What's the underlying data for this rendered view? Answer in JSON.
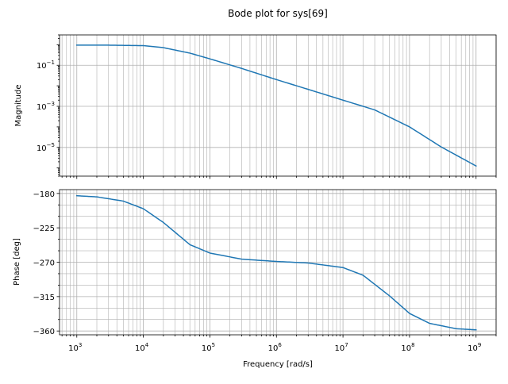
{
  "figure": {
    "title": "Bode plot for sys[69]"
  },
  "colors": {
    "series": "#1f77b4",
    "grid": "#b0b0b0"
  },
  "chart_data": [
    {
      "type": "line",
      "panel": "magnitude",
      "title": "Bode plot for sys[69]",
      "xlabel": "",
      "ylabel": "Magnitude",
      "xscale": "log",
      "yscale": "log",
      "xlim": [
        550,
        2000000000
      ],
      "ylim": [
        4e-07,
        3
      ],
      "grid": true,
      "y_ticks": [
        0.1,
        0.001,
        1e-05
      ],
      "y_tick_labels": [
        {
          "base": "10",
          "exp": "−1"
        },
        {
          "base": "10",
          "exp": "−3"
        },
        {
          "base": "10",
          "exp": "−5"
        }
      ],
      "x_tick_labels_visible": false,
      "series": [
        {
          "x": [
            1000,
            3000,
            10000,
            20000,
            50000,
            100000,
            300000,
            1000000,
            3000000,
            10000000,
            30000000,
            100000000,
            300000000,
            1000000000
          ],
          "values": [
            0.95,
            0.95,
            0.9,
            0.72,
            0.39,
            0.205,
            0.07,
            0.02,
            0.0067,
            0.002,
            0.00067,
            0.0001,
            1.05e-05,
            1.25e-06
          ]
        }
      ]
    },
    {
      "type": "line",
      "panel": "phase",
      "xlabel": "Frequency [rad/s]",
      "ylabel": "Phase [deg]",
      "xscale": "log",
      "yscale": "linear",
      "xlim": [
        550,
        2000000000
      ],
      "ylim": [
        -365,
        -175
      ],
      "grid": true,
      "y_ticks": [
        -180,
        -225,
        -270,
        -315,
        -360
      ],
      "y_tick_labels": [
        "−180",
        "−225",
        "−270",
        "−315",
        "−360"
      ],
      "x_ticks": [
        1000,
        10000,
        100000,
        1000000,
        10000000,
        100000000,
        1000000000
      ],
      "x_tick_labels": [
        {
          "base": "10",
          "exp": "3"
        },
        {
          "base": "10",
          "exp": "4"
        },
        {
          "base": "10",
          "exp": "5"
        },
        {
          "base": "10",
          "exp": "6"
        },
        {
          "base": "10",
          "exp": "7"
        },
        {
          "base": "10",
          "exp": "8"
        },
        {
          "base": "10",
          "exp": "9"
        }
      ],
      "series": [
        {
          "x": [
            1000,
            2000,
            5000,
            10000,
            20000,
            50000,
            100000,
            300000,
            1000000,
            3000000,
            10000000,
            20000000,
            50000000,
            100000000,
            200000000,
            500000000,
            1000000000
          ],
          "values": [
            -183,
            -184.5,
            -190,
            -200,
            -218,
            -247,
            -258,
            -266,
            -269,
            -271,
            -277,
            -287,
            -314,
            -337,
            -350,
            -357,
            -358.5
          ]
        }
      ]
    }
  ]
}
